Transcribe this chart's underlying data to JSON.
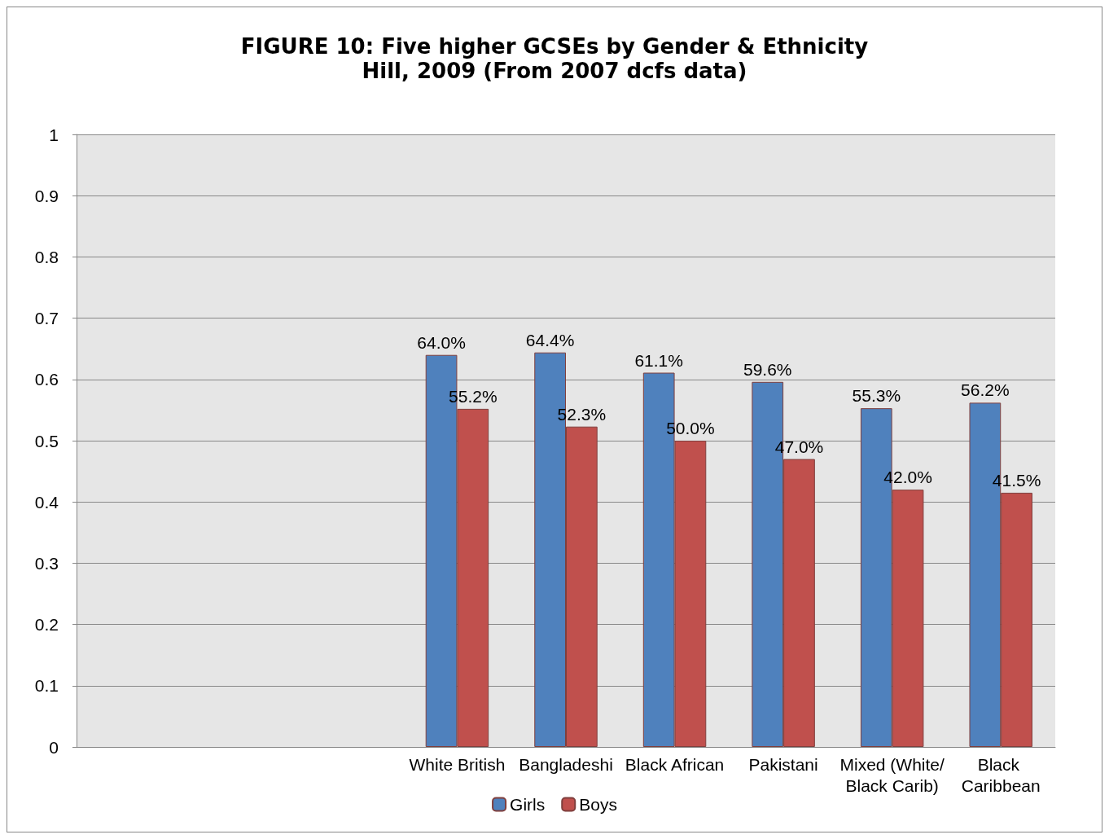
{
  "chart_data": {
    "type": "bar",
    "title": "FIGURE 10: Five higher GCSEs by Gender & Ethnicity",
    "subtitle": "Hill, 2009 (From 2007 dcfs data)",
    "categories": [
      null,
      null,
      null,
      "White British",
      "Bangladeshi",
      "Black African",
      "Pakistani",
      "Mixed (White/Black Carib)",
      "Black Caribbean"
    ],
    "series": [
      {
        "name": "Girls",
        "color": "#4f81bd",
        "values": [
          null,
          null,
          null,
          0.64,
          0.644,
          0.611,
          0.596,
          0.553,
          0.562
        ],
        "value_labels": [
          null,
          null,
          null,
          "64.0%",
          "64.4%",
          "61.1%",
          "59.6%",
          "55.3%",
          "56.2%"
        ]
      },
      {
        "name": "Boys",
        "color": "#c0504d",
        "values": [
          null,
          null,
          null,
          0.552,
          0.523,
          0.5,
          0.47,
          0.42,
          0.415
        ],
        "value_labels": [
          null,
          null,
          null,
          "55.2%",
          "52.3%",
          "50.0%",
          "47.0%",
          "42.0%",
          "41.5%"
        ]
      }
    ],
    "ylim": [
      0,
      1
    ],
    "yticks": [
      0,
      0.1,
      0.2,
      0.3,
      0.4,
      0.5,
      0.6,
      0.7,
      0.8,
      0.9,
      1
    ],
    "grid": "y",
    "legend": "bottom"
  }
}
